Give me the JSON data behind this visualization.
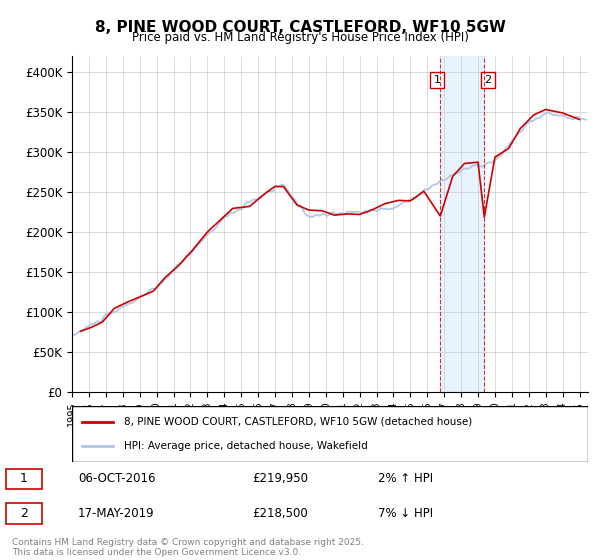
{
  "title": "8, PINE WOOD COURT, CASTLEFORD, WF10 5GW",
  "subtitle": "Price paid vs. HM Land Registry's House Price Index (HPI)",
  "ylabel_ticks": [
    "£0",
    "£50K",
    "£100K",
    "£150K",
    "£200K",
    "£250K",
    "£300K",
    "£350K",
    "£400K"
  ],
  "ytick_values": [
    0,
    50000,
    100000,
    150000,
    200000,
    250000,
    300000,
    350000,
    400000
  ],
  "ylim": [
    0,
    420000
  ],
  "xlim_start": 1995.0,
  "xlim_end": 2025.5,
  "hpi_color": "#aec6e8",
  "price_color": "#cc0000",
  "marker1_date": 2016.77,
  "marker1_price": 219950,
  "marker2_date": 2019.37,
  "marker2_price": 218500,
  "marker1_label": "06-OCT-2016",
  "marker1_price_label": "£219,950",
  "marker1_hpi_label": "2% ↑ HPI",
  "marker2_label": "17-MAY-2019",
  "marker2_price_label": "£218,500",
  "marker2_hpi_label": "7% ↓ HPI",
  "legend_line1": "8, PINE WOOD COURT, CASTLEFORD, WF10 5GW (detached house)",
  "legend_line2": "HPI: Average price, detached house, Wakefield",
  "footer": "Contains HM Land Registry data © Crown copyright and database right 2025.\nThis data is licensed under the Open Government Licence v3.0.",
  "background_color": "#ffffff",
  "plot_background": "#ffffff",
  "grid_color": "#cccccc",
  "shaded_region_color": "#ddeeff"
}
